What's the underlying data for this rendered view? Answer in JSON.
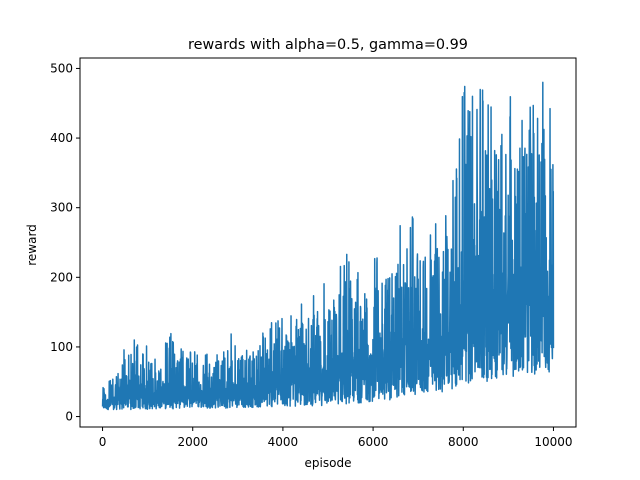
{
  "chart_data": {
    "type": "line",
    "title": "rewards with alpha=0.5, gamma=0.99",
    "xlabel": "episode",
    "ylabel": "reward",
    "xlim": [
      -500,
      10500
    ],
    "ylim": [
      -15,
      515
    ],
    "xticks": [
      0,
      2000,
      4000,
      6000,
      8000,
      10000
    ],
    "yticks": [
      0,
      100,
      200,
      300,
      400,
      500
    ],
    "grid": false,
    "series_color": "#1f77b4",
    "envelope": [
      {
        "x": 0,
        "low": 10,
        "high": 52
      },
      {
        "x": 200,
        "low": 10,
        "high": 55
      },
      {
        "x": 500,
        "low": 10,
        "high": 105
      },
      {
        "x": 900,
        "low": 10,
        "high": 120
      },
      {
        "x": 1200,
        "low": 11,
        "high": 88
      },
      {
        "x": 1500,
        "low": 11,
        "high": 128
      },
      {
        "x": 2000,
        "low": 12,
        "high": 95
      },
      {
        "x": 2500,
        "low": 12,
        "high": 95
      },
      {
        "x": 2800,
        "low": 12,
        "high": 140
      },
      {
        "x": 3000,
        "low": 13,
        "high": 110
      },
      {
        "x": 3500,
        "low": 13,
        "high": 125
      },
      {
        "x": 4000,
        "low": 14,
        "high": 150
      },
      {
        "x": 4500,
        "low": 15,
        "high": 170
      },
      {
        "x": 5000,
        "low": 16,
        "high": 200
      },
      {
        "x": 5400,
        "low": 18,
        "high": 248
      },
      {
        "x": 5800,
        "low": 20,
        "high": 215
      },
      {
        "x": 6200,
        "low": 22,
        "high": 240
      },
      {
        "x": 6500,
        "low": 25,
        "high": 260
      },
      {
        "x": 6800,
        "low": 30,
        "high": 345
      },
      {
        "x": 7000,
        "low": 32,
        "high": 280
      },
      {
        "x": 7500,
        "low": 35,
        "high": 300
      },
      {
        "x": 7800,
        "low": 40,
        "high": 350
      },
      {
        "x": 8000,
        "low": 45,
        "high": 500
      },
      {
        "x": 8300,
        "low": 48,
        "high": 500
      },
      {
        "x": 8600,
        "low": 50,
        "high": 480
      },
      {
        "x": 8900,
        "low": 55,
        "high": 500
      },
      {
        "x": 9200,
        "low": 58,
        "high": 500
      },
      {
        "x": 9500,
        "low": 60,
        "high": 500
      },
      {
        "x": 9800,
        "low": 62,
        "high": 500
      },
      {
        "x": 10000,
        "low": 65,
        "high": 500
      }
    ]
  }
}
